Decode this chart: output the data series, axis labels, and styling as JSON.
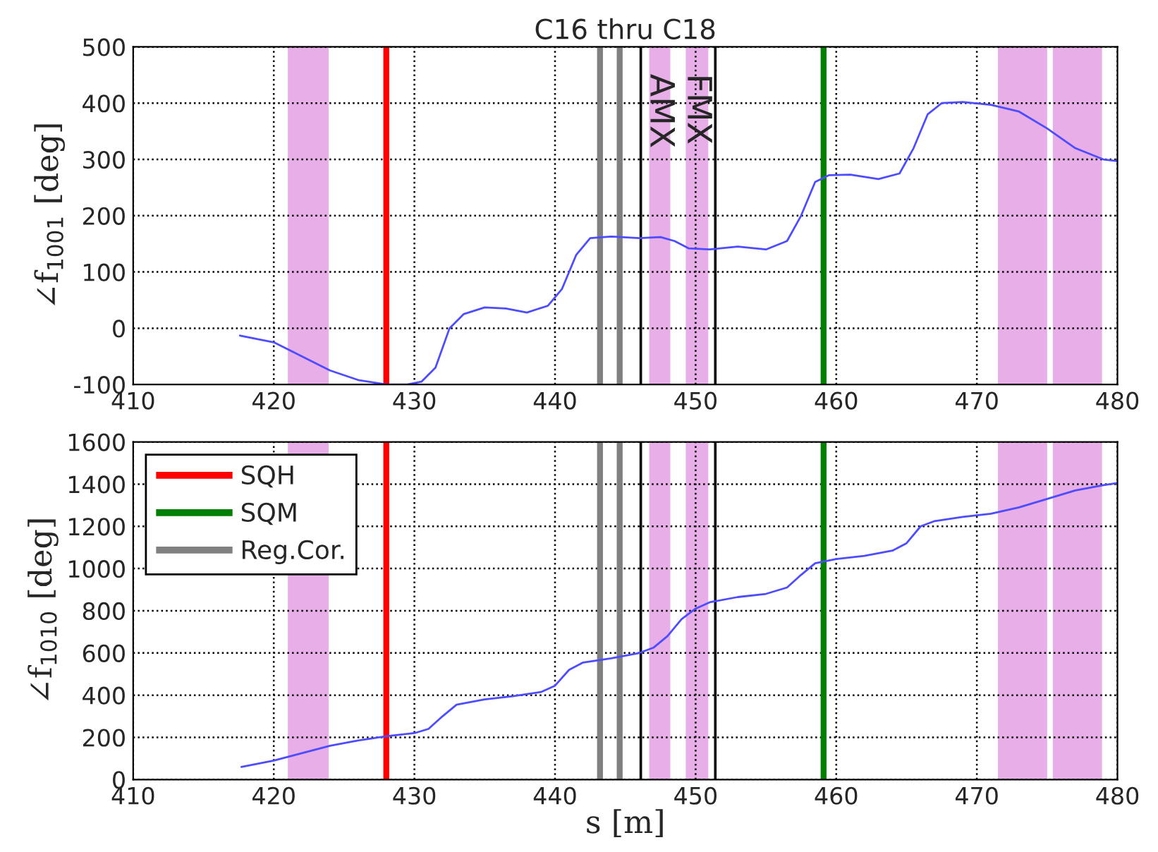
{
  "chart_data": [
    {
      "type": "line",
      "title": "C16 thru C18",
      "ylabel": "∠f$_{1001}$ [deg]",
      "xlim": [
        410,
        480
      ],
      "xticks": [
        410,
        420,
        430,
        440,
        450,
        460,
        470,
        480
      ],
      "ylim": [
        -100,
        500
      ],
      "yticks": [
        -100,
        0,
        100,
        200,
        300,
        400,
        500
      ],
      "grid": true,
      "legend": false,
      "series": [
        {
          "color": "#4d4dff",
          "x": [
            417.6,
            420,
            422,
            424,
            426,
            428,
            429.5,
            430.5,
            431.5,
            432.5,
            433.5,
            435,
            436.5,
            438,
            439.5,
            440.5,
            441.5,
            442.5,
            444,
            446,
            447.5,
            448.5,
            449.5,
            451,
            453,
            455,
            456.5,
            457.5,
            458.5,
            459.5,
            461,
            463,
            464.5,
            465.5,
            466.5,
            467.5,
            469,
            471,
            473,
            475,
            477,
            479,
            480
          ],
          "values": [
            -13,
            -25,
            -50,
            -75,
            -92,
            -100,
            -100,
            -95,
            -70,
            0,
            25,
            37,
            35,
            28,
            40,
            70,
            130,
            160,
            163,
            160,
            162,
            155,
            142,
            140,
            145,
            140,
            155,
            200,
            260,
            272,
            273,
            265,
            275,
            320,
            380,
            400,
            402,
            397,
            385,
            355,
            320,
            300,
            297
          ]
        }
      ],
      "bands": [
        {
          "axis": "x",
          "from": 421,
          "to": 423.9,
          "color": "#e8aee8"
        },
        {
          "axis": "x",
          "from": 446.7,
          "to": 448.2,
          "color": "#e8aee8",
          "label": "AMX"
        },
        {
          "axis": "x",
          "from": 449.3,
          "to": 450.9,
          "color": "#e8aee8",
          "label": "FMX"
        },
        {
          "axis": "x",
          "from": 471.5,
          "to": 475,
          "color": "#e8aee8"
        },
        {
          "axis": "x",
          "from": 475.4,
          "to": 478.9,
          "color": "#e8aee8"
        }
      ],
      "ref_lines": [
        {
          "axis": "x",
          "value": 428,
          "color": "#ff0000"
        },
        {
          "axis": "x",
          "value": 459.1,
          "color": "#007f00"
        },
        {
          "axis": "x",
          "value": 443.2,
          "color": "#808080"
        },
        {
          "axis": "x",
          "value": 444.6,
          "color": "#808080"
        },
        {
          "axis": "x",
          "value": 446.1,
          "color": "#000000",
          "line_style": "solid"
        },
        {
          "axis": "x",
          "value": 451.4,
          "color": "#000000",
          "line_style": "solid"
        }
      ]
    },
    {
      "type": "line",
      "xlabel": "s [m]",
      "ylabel": "∠f$_{1010}$ [deg]",
      "xlim": [
        410,
        480
      ],
      "xticks": [
        410,
        420,
        430,
        440,
        450,
        460,
        470,
        480
      ],
      "ylim": [
        0,
        1600
      ],
      "yticks": [
        0,
        200,
        400,
        600,
        800,
        1000,
        1200,
        1400,
        1600
      ],
      "grid": true,
      "legend": "top left",
      "series": [
        {
          "color": "#4d4dff",
          "x": [
            417.7,
            420,
            422,
            424,
            426,
            428,
            430,
            431,
            432,
            433,
            435,
            437,
            439,
            440,
            441,
            442,
            444,
            446,
            447,
            448,
            449,
            450,
            451,
            453,
            455,
            456.5,
            457.5,
            458.5,
            460,
            462,
            464,
            465,
            466,
            467,
            469,
            471,
            473,
            475,
            477,
            479,
            480
          ],
          "values": [
            60,
            90,
            125,
            160,
            185,
            205,
            220,
            240,
            300,
            355,
            380,
            395,
            415,
            445,
            520,
            555,
            575,
            600,
            625,
            680,
            760,
            810,
            840,
            865,
            880,
            910,
            970,
            1025,
            1045,
            1060,
            1085,
            1120,
            1200,
            1225,
            1245,
            1260,
            1290,
            1330,
            1370,
            1395,
            1405
          ]
        },
        {
          "name": "SQH",
          "color": "#ff0000",
          "x": [
            428,
            428
          ],
          "values": [
            0,
            1600
          ]
        },
        {
          "name": "SQM",
          "color": "#007f00",
          "x": [
            459.1,
            459.1
          ],
          "values": [
            0,
            1600
          ]
        },
        {
          "name": "Reg.Cor.",
          "color": "#808080",
          "x": [
            443.2,
            443.2
          ],
          "values": [
            0,
            1600
          ]
        },
        {
          "color": "#808080",
          "x": [
            444.6,
            444.6
          ],
          "values": [
            0,
            1600
          ]
        }
      ],
      "bands": [
        {
          "axis": "x",
          "from": 421,
          "to": 423.9,
          "color": "#e8aee8"
        },
        {
          "axis": "x",
          "from": 446.7,
          "to": 448.2,
          "color": "#e8aee8"
        },
        {
          "axis": "x",
          "from": 449.3,
          "to": 450.9,
          "color": "#e8aee8"
        },
        {
          "axis": "x",
          "from": 471.5,
          "to": 475,
          "color": "#e8aee8"
        },
        {
          "axis": "x",
          "from": 475.4,
          "to": 478.9,
          "color": "#e8aee8"
        }
      ],
      "ref_lines": [
        {
          "axis": "x",
          "value": 446.1,
          "color": "#000000",
          "line_style": "solid"
        },
        {
          "axis": "x",
          "value": 451.4,
          "color": "#000000",
          "line_style": "solid"
        }
      ]
    }
  ]
}
